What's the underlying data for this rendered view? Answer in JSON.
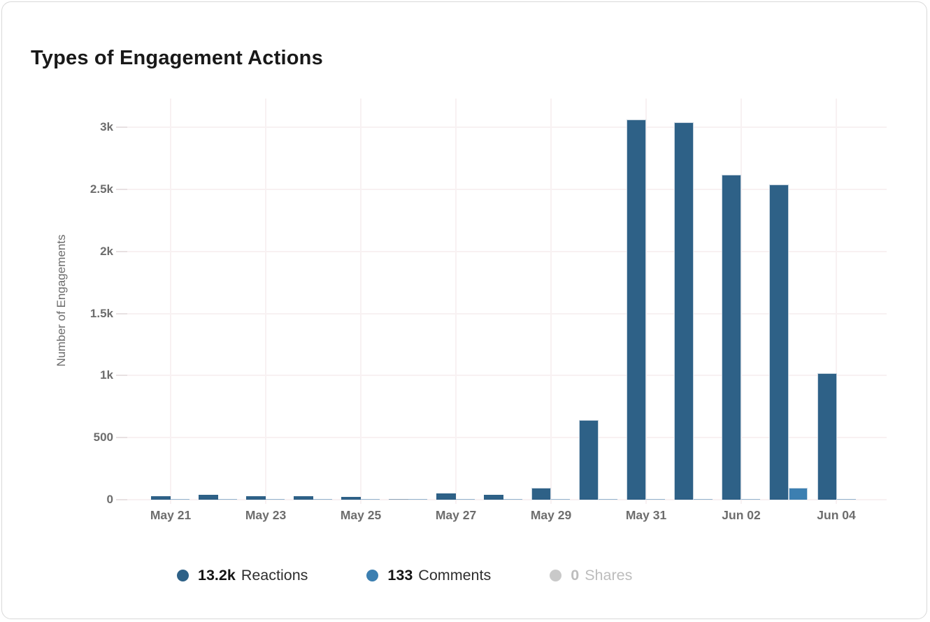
{
  "card": {
    "title": "Types of Engagement Actions"
  },
  "colors": {
    "reactions": "#2e6187",
    "comments": "#3c7fb1",
    "shares": "#c9c9c9",
    "axis_text": "#6d6d6d",
    "gridline": "#f8f1f2"
  },
  "chart_data": {
    "type": "bar",
    "title": "Types of Engagement Actions",
    "xlabel": "",
    "ylabel": "Number of Engagements",
    "ylim": [
      0,
      3000
    ],
    "grid": true,
    "legend_position": "bottom",
    "yticks": [
      {
        "value": 0,
        "label": "0"
      },
      {
        "value": 500,
        "label": "500"
      },
      {
        "value": 1000,
        "label": "1k"
      },
      {
        "value": 1500,
        "label": "1.5k"
      },
      {
        "value": 2000,
        "label": "2k"
      },
      {
        "value": 2500,
        "label": "2.5k"
      },
      {
        "value": 3000,
        "label": "3k"
      }
    ],
    "categories": [
      "May 21",
      "May 22",
      "May 23",
      "May 24",
      "May 25",
      "May 26",
      "May 27",
      "May 28",
      "May 29",
      "May 30",
      "May 31",
      "Jun 01",
      "Jun 02",
      "Jun 03",
      "Jun 04"
    ],
    "x_tick_labels": [
      "May 21",
      "May 23",
      "May 25",
      "May 27",
      "May 29",
      "May 31",
      "Jun 02",
      "Jun 04"
    ],
    "labeled_category_indices": [
      0,
      2,
      4,
      6,
      8,
      10,
      12,
      14
    ],
    "series": [
      {
        "name": "Reactions",
        "total_label": "13.2k",
        "color": "#2e6187",
        "dimmed": false,
        "values": [
          30,
          38,
          28,
          28,
          20,
          5,
          50,
          38,
          95,
          640,
          3060,
          3040,
          2620,
          2540,
          1020
        ]
      },
      {
        "name": "Comments",
        "total_label": "133",
        "color": "#3c7fb1",
        "dimmed": false,
        "values": [
          3,
          3,
          2,
          2,
          2,
          1,
          3,
          2,
          4,
          4,
          3,
          3,
          4,
          95,
          2
        ]
      },
      {
        "name": "Shares",
        "total_label": "0",
        "color": "#c9c9c9",
        "dimmed": true,
        "values": [
          0,
          0,
          0,
          0,
          0,
          0,
          0,
          0,
          0,
          0,
          0,
          0,
          0,
          0,
          0
        ]
      }
    ]
  }
}
